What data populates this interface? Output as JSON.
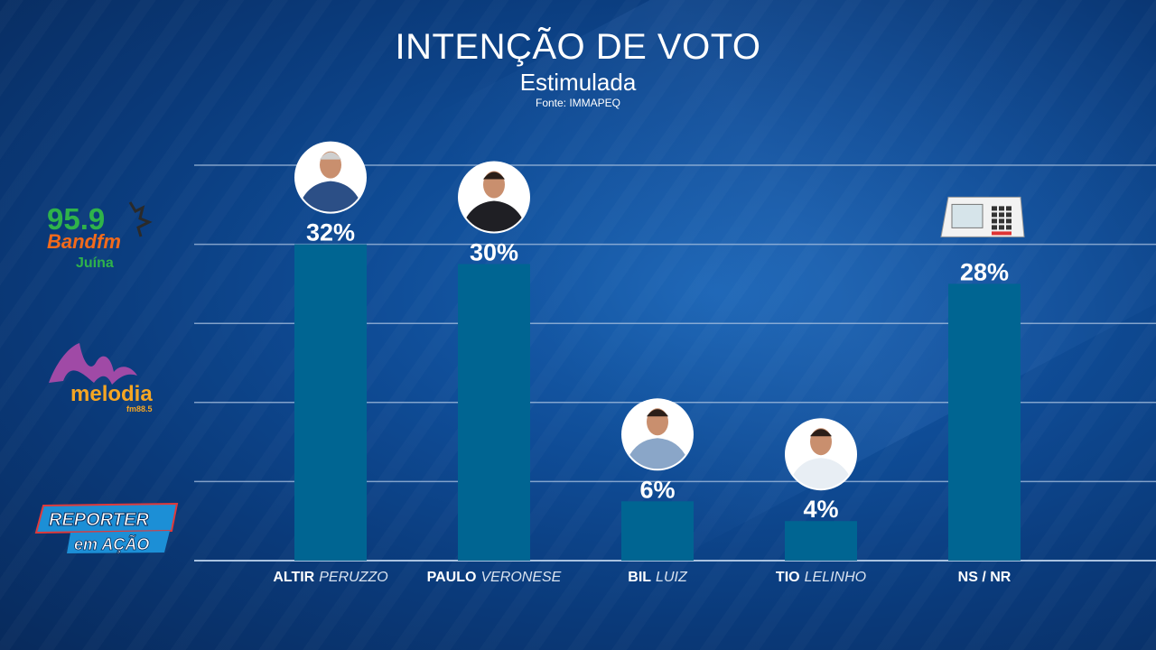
{
  "header": {
    "title": "INTENÇÃO DE VOTO",
    "subtitle": "Estimulada",
    "source": "Fonte: IMMAPEQ"
  },
  "logos": {
    "band": {
      "freq": "95.9",
      "name": "Bandfm",
      "city": "Juína"
    },
    "melodia": {
      "name": "melodia",
      "fm": "fm88.5"
    },
    "reporter": {
      "line1": "REPORTER",
      "line2": "em AÇÃO"
    }
  },
  "chart_data": {
    "type": "bar",
    "title": "INTENÇÃO DE VOTO",
    "subtitle": "Estimulada",
    "categories": [
      "ALTIR PERUZZO",
      "PAULO VERONESE",
      "BIL LUIZ",
      "TIO LELINHO",
      "NS / NR"
    ],
    "category_parts": [
      {
        "first": "ALTIR",
        "last": "PERUZZO"
      },
      {
        "first": "PAULO",
        "last": "VERONESE"
      },
      {
        "first": "BIL",
        "last": "LUIZ"
      },
      {
        "first": "TIO",
        "last": "LELINHO"
      },
      {
        "first": "NS / NR",
        "last": ""
      }
    ],
    "values": [
      32,
      30,
      6,
      4,
      28
    ],
    "labels": [
      "32%",
      "30%",
      "6%",
      "4%",
      "28%"
    ],
    "ylim": [
      0,
      40
    ],
    "grid": true,
    "colors": {
      "bar": "#006592",
      "grid": "#a9c2e0",
      "text": "#ffffff",
      "lastname": "#d9e3f0"
    },
    "icons": [
      "person-photo-icon",
      "person-photo-icon",
      "person-photo-icon",
      "person-photo-icon",
      "voting-machine-icon"
    ]
  }
}
